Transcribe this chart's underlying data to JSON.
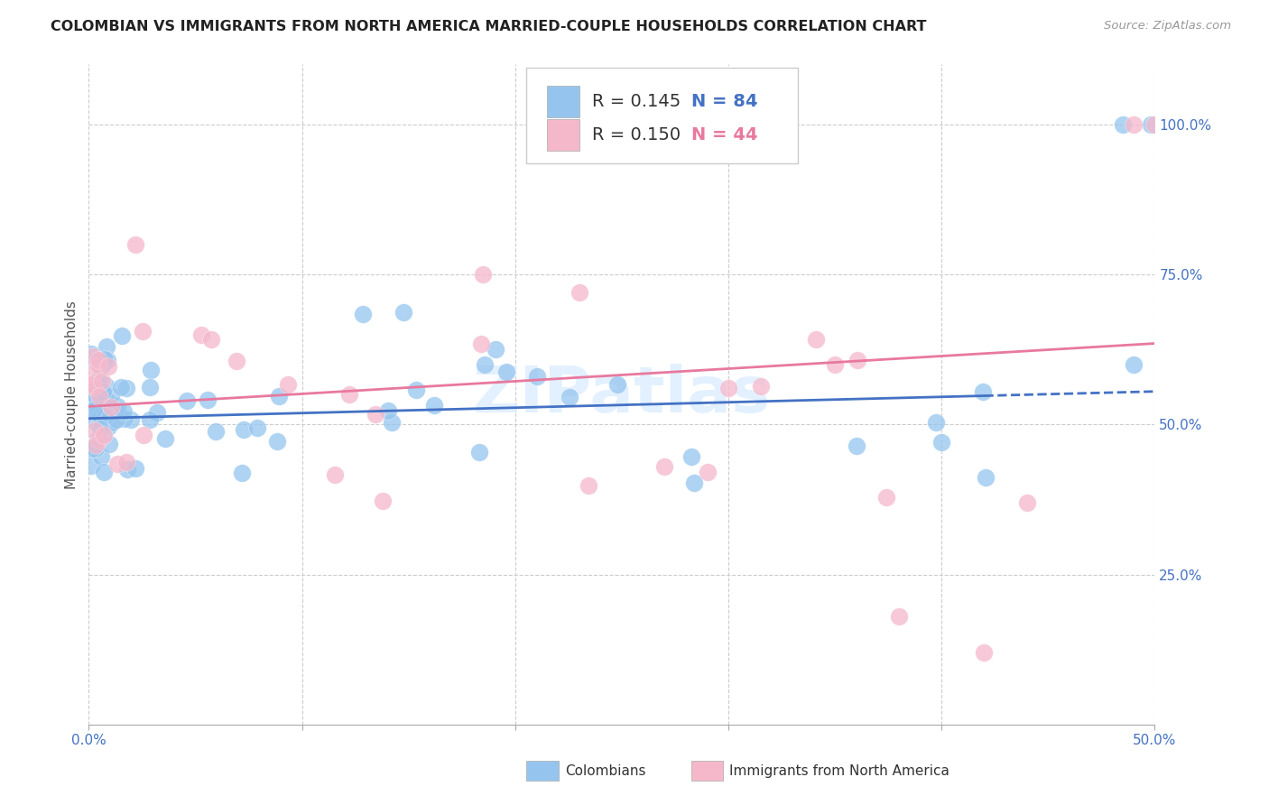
{
  "title": "COLOMBIAN VS IMMIGRANTS FROM NORTH AMERICA MARRIED-COUPLE HOUSEHOLDS CORRELATION CHART",
  "source": "Source: ZipAtlas.com",
  "ylabel": "Married-couple Households",
  "xlim": [
    0.0,
    0.5
  ],
  "ylim": [
    0.0,
    1.1
  ],
  "xtick_labels": [
    "0.0%",
    "",
    "",
    "",
    "",
    "50.0%"
  ],
  "xtick_vals": [
    0.0,
    0.1,
    0.2,
    0.3,
    0.4,
    0.5
  ],
  "ytick_labels": [
    "25.0%",
    "50.0%",
    "75.0%",
    "100.0%"
  ],
  "ytick_vals": [
    0.25,
    0.5,
    0.75,
    1.0
  ],
  "blue_color": "#95C5EE",
  "pink_color": "#F5B8CB",
  "blue_line_color": "#4472C4",
  "pink_line_color": "#E8799E",
  "blue_N": 84,
  "pink_N": 44,
  "background_color": "#ffffff",
  "grid_color": "#CCCCCC",
  "watermark": "ZIPatlas",
  "title_fontsize": 11.5,
  "axis_label_fontsize": 11,
  "tick_fontsize": 11
}
